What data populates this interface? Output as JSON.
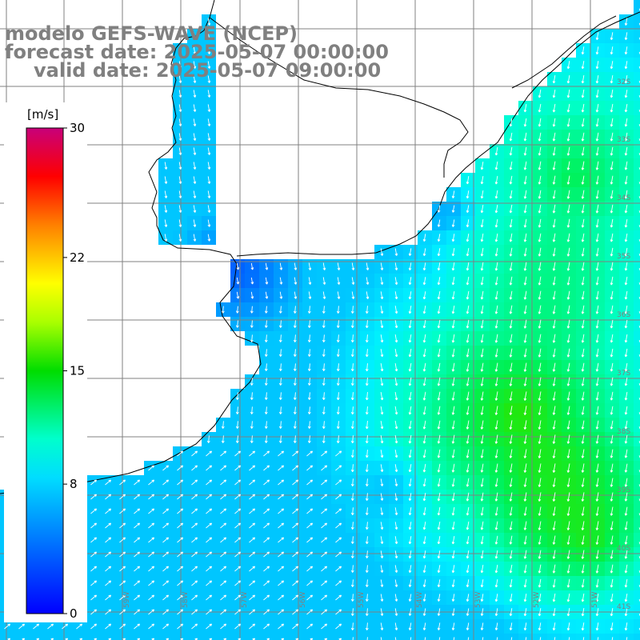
{
  "header": {
    "model": "modelo GEFS-WAVE (NCEP)",
    "forecast": "forecast date: 2025-05-07 00:00:00",
    "valid": "valid date: 2025-05-07 09:00:00"
  },
  "colorbar": {
    "unit": "[m/s]",
    "min": 0,
    "max": 30,
    "ticks": [
      "30",
      "22",
      "15",
      "8",
      "0"
    ],
    "tick_values": [
      30,
      22,
      15,
      8,
      0
    ],
    "colors": {
      "low": "#0000ff",
      "mid_blue": "#00aaff",
      "cyan": "#00ffff",
      "green": "#00dd00",
      "yellow": "#ffff00",
      "orange": "#ff8000",
      "red": "#ff0000",
      "high": "#c8007a"
    }
  },
  "map": {
    "land_color": "#ffffff",
    "grid": true,
    "grid_color": "#808080",
    "coastline_color": "#000000",
    "arrow_color": "#ffffff",
    "field": "wind speed and direction"
  },
  "lat_labels": [
    "32S",
    "33S",
    "34S",
    "35S",
    "36S",
    "37S",
    "38S",
    "39S",
    "40S",
    "41S"
  ],
  "lon_labels": [
    "61W",
    "60W",
    "59W",
    "58W",
    "57W",
    "56W",
    "55W",
    "54W",
    "53W",
    "52W",
    "51W"
  ]
}
